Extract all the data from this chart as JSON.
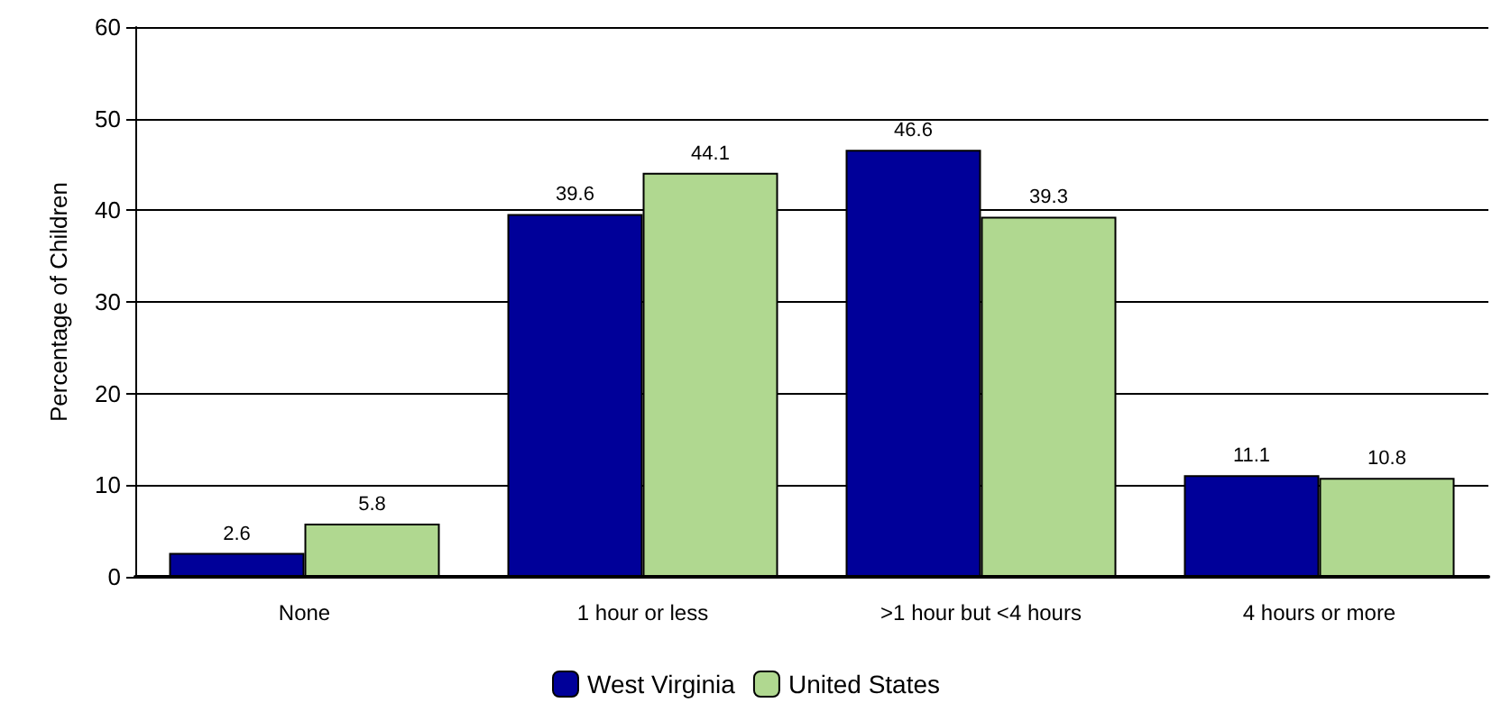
{
  "chart_data": {
    "type": "bar",
    "ylabel": "Percentage of Children",
    "categories": [
      "None",
      "1 hour or less",
      ">1 hour but <4 hours",
      "4 hours or more"
    ],
    "series": [
      {
        "name": "West Virginia",
        "color": "#000099",
        "values": [
          2.6,
          39.6,
          46.6,
          11.1
        ]
      },
      {
        "name": "United States",
        "color": "#b0d890",
        "values": [
          5.8,
          44.1,
          39.3,
          10.8
        ]
      }
    ],
    "ylim": [
      0,
      60
    ],
    "yticks": [
      0,
      10,
      20,
      30,
      40,
      50,
      60
    ],
    "grid": "y",
    "legend": "bottom",
    "data_labels": true
  }
}
